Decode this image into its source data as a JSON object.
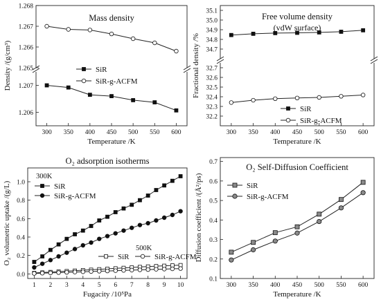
{
  "chart_data": [
    {
      "type": "line",
      "title": "Mass density",
      "xlabel": "Temperature /K",
      "ylabel": "Density /(g/cm³)",
      "x": [
        300,
        350,
        400,
        450,
        500,
        550,
        600
      ],
      "xlim": [
        275,
        625
      ],
      "xticks": [
        "300",
        "350",
        "400",
        "450",
        "500",
        "550",
        "600"
      ],
      "y_break": true,
      "upper_ylim": [
        1.265,
        1.268
      ],
      "upper_yticks": [
        "1.265",
        "1.266",
        "1.267",
        "1.268"
      ],
      "lower_ylim": [
        1.2055,
        1.2075
      ],
      "lower_yticks": [
        "1.206",
        "1.207"
      ],
      "legend_placement": "middle-left",
      "series": [
        {
          "name": "SiR",
          "marker": "square-filled",
          "values": [
            1.207,
            1.20692,
            1.20665,
            1.2066,
            1.20645,
            1.20637,
            1.20607
          ]
        },
        {
          "name": "SiR-g-ACFM",
          "marker": "circle-open",
          "values": [
            1.267,
            1.26685,
            1.26682,
            1.26663,
            1.2664,
            1.2662,
            1.2658
          ]
        }
      ]
    },
    {
      "type": "line",
      "title": "Free volume density",
      "subtitle": "(vdW surface)",
      "xlabel": "Temperature /K",
      "ylabel": "Fractional density /%",
      "x": [
        300,
        350,
        400,
        450,
        500,
        550,
        600
      ],
      "xlim": [
        275,
        625
      ],
      "xticks": [
        "300",
        "350",
        "400",
        "450",
        "500",
        "550",
        "600"
      ],
      "y_break": true,
      "upper_ylim": [
        34.6,
        35.15
      ],
      "upper_yticks": [
        "34.7",
        "34.8",
        "34.9",
        "35.0",
        "35.1"
      ],
      "lower_ylim": [
        32.1,
        32.75
      ],
      "lower_yticks": [
        "32.2",
        "32.3",
        "32.4",
        "32.5",
        "32.6",
        "32.7"
      ],
      "legend_placement": "lower-right",
      "series": [
        {
          "name": "SiR",
          "marker": "square-filled",
          "values": [
            34.845,
            34.858,
            34.865,
            34.868,
            34.872,
            34.879,
            34.894
          ]
        },
        {
          "name": "SiR-g-ACFM",
          "marker": "circle-open",
          "values": [
            32.34,
            32.364,
            32.38,
            32.387,
            32.393,
            32.405,
            32.418
          ]
        }
      ]
    },
    {
      "type": "line",
      "title": "O₂ adsorption isotherms",
      "xlabel": "Fugacity /10⁵Pa",
      "ylabel": "O₂ volumetric uptake /(g/L)",
      "x": [
        1,
        1.5,
        2,
        2.5,
        3,
        3.5,
        4,
        4.5,
        5,
        5.5,
        6,
        6.5,
        7,
        7.5,
        8,
        8.5,
        9,
        9.5,
        10
      ],
      "xlim": [
        0.6,
        10.4
      ],
      "xticks": [
        "1",
        "2",
        "3",
        "4",
        "5",
        "6",
        "7",
        "8",
        "9",
        "10"
      ],
      "ylim": [
        -0.05,
        1.15
      ],
      "yticks": [
        "0.0",
        "0.2",
        "0.4",
        "0.6",
        "0.8",
        "1.0"
      ],
      "annotations": [
        "300K",
        "500K"
      ],
      "series": [
        {
          "name": "SiR",
          "group": "300K",
          "marker": "square-filled",
          "values": [
            0.13,
            0.19,
            0.26,
            0.32,
            0.38,
            0.43,
            0.47,
            0.52,
            0.58,
            0.62,
            0.67,
            0.71,
            0.75,
            0.8,
            0.85,
            0.91,
            0.96,
            1.01,
            1.06
          ]
        },
        {
          "name": "SiR-g-ACFM",
          "group": "300K",
          "marker": "circle-filled",
          "values": [
            0.07,
            0.11,
            0.15,
            0.19,
            0.23,
            0.27,
            0.31,
            0.34,
            0.38,
            0.41,
            0.44,
            0.47,
            0.5,
            0.53,
            0.55,
            0.58,
            0.61,
            0.64,
            0.68
          ]
        },
        {
          "name": "SiR",
          "group": "500K",
          "marker": "square-open",
          "values": [
            0.01,
            0.015,
            0.02,
            0.025,
            0.03,
            0.035,
            0.04,
            0.045,
            0.05,
            0.055,
            0.06,
            0.065,
            0.07,
            0.075,
            0.08,
            0.084,
            0.088,
            0.092,
            0.095
          ]
        },
        {
          "name": "SiR-g-ACFM",
          "group": "500K",
          "marker": "circle-open",
          "values": [
            0.005,
            0.008,
            0.011,
            0.014,
            0.017,
            0.02,
            0.023,
            0.026,
            0.029,
            0.032,
            0.035,
            0.038,
            0.041,
            0.044,
            0.047,
            0.05,
            0.052,
            0.055,
            0.058
          ]
        }
      ]
    },
    {
      "type": "line",
      "title": "O₂ Self-Diffusion Coefficient",
      "xlabel": "Temperature /K",
      "ylabel": "Diffusion coefficient /(Å²/ps)",
      "x": [
        300,
        350,
        400,
        450,
        500,
        550,
        600
      ],
      "xlim": [
        275,
        625
      ],
      "xticks": [
        "300",
        "350",
        "400",
        "450",
        "500",
        "550",
        "600"
      ],
      "ylim": [
        0.1,
        0.72
      ],
      "yticks": [
        "0.1",
        "0.2",
        "0.3",
        "0.4",
        "0.5",
        "0.6",
        "0.7"
      ],
      "legend_placement": "top-left",
      "series": [
        {
          "name": "SiR",
          "marker": "square-grey",
          "values": [
            0.235,
            0.285,
            0.335,
            0.365,
            0.43,
            0.505,
            0.593
          ]
        },
        {
          "name": "SiR-g-ACFM",
          "marker": "circle-grey",
          "values": [
            0.195,
            0.247,
            0.292,
            0.333,
            0.392,
            0.462,
            0.54
          ]
        }
      ]
    }
  ]
}
